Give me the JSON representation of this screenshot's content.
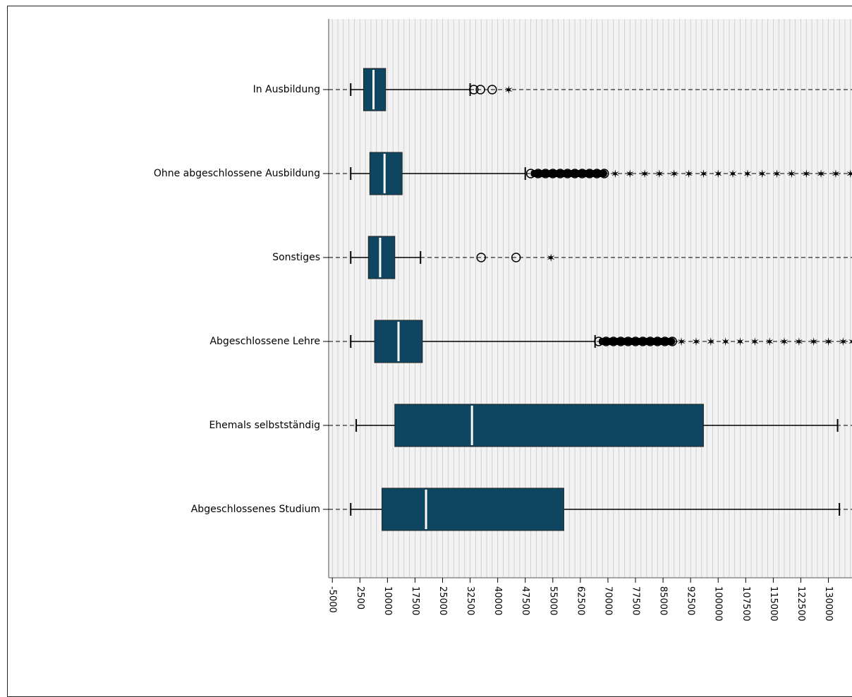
{
  "chart_data": {
    "type": "boxplot",
    "orientation": "horizontal",
    "title": "",
    "xlabel": "",
    "ylabel": "",
    "xlim": [
      -6000,
      137000
    ],
    "x_ticks": [
      -5000,
      2500,
      10000,
      17500,
      25000,
      32500,
      40000,
      47500,
      55000,
      62500,
      70000,
      77500,
      85000,
      92500,
      100000,
      107500,
      115000,
      122500,
      130000
    ],
    "x_tick_labels": [
      "-5000",
      "2500",
      "10000",
      "17500",
      "25000",
      "32500",
      "40000",
      "47500",
      "55000",
      "62500",
      "70000",
      "77500",
      "85000",
      "92500",
      "100000",
      "107500",
      "115000",
      "122500",
      "130000"
    ],
    "grid": true,
    "colors": {
      "box_fill": "#0e4560",
      "median": "#ffffff",
      "plot_bg": "#f2f2f2",
      "grid": "#c8c8c8",
      "whisker": "#000000"
    },
    "categories": [
      "In Ausbildung",
      "Ohne abgeschlossene Ausbildung",
      "Sonstiges",
      "Abgeschlossene Lehre",
      "Ehemals selbstständig",
      "Abgeschlossenes Studium"
    ],
    "boxes": [
      {
        "min": 0,
        "q1": 3500,
        "median": 6200,
        "q3": 9500,
        "max": 32500,
        "outliers": [
          33500,
          35300,
          38500
        ],
        "extremes": [
          43000
        ],
        "outliers_beyond_axis": false
      },
      {
        "min": 0,
        "q1": 5200,
        "median": 9200,
        "q3": 14000,
        "max": 47500,
        "outliers": [
          49000,
          51000,
          53000,
          55000,
          57000,
          59000,
          61000,
          63000,
          65000,
          67000,
          69000
        ],
        "extremes": [
          72000,
          76000,
          80000,
          84000,
          88000,
          92000,
          96000,
          100000,
          104000,
          108000,
          112000,
          116000,
          120000,
          124000,
          128000,
          132000,
          136000
        ],
        "outliers_beyond_axis": true
      },
      {
        "min": 0,
        "q1": 4800,
        "median": 8000,
        "q3": 12000,
        "max": 19000,
        "outliers": [
          35500,
          45000
        ],
        "extremes": [
          54500
        ],
        "outliers_beyond_axis": false
      },
      {
        "min": 0,
        "q1": 6500,
        "median": 13000,
        "q3": 19500,
        "max": 66500,
        "outliers": [
          67500,
          69500,
          71500,
          73500,
          75500,
          77500,
          79500,
          81500,
          83500,
          85500,
          87500
        ],
        "extremes": [
          90000,
          94000,
          98000,
          102000,
          106000,
          110000,
          114000,
          118000,
          122000,
          126000,
          130000,
          134000,
          136500
        ],
        "outliers_beyond_axis": true
      },
      {
        "min": 1500,
        "q1": 12000,
        "median": 33000,
        "q3": 96000,
        "max": 132500,
        "outliers": [],
        "extremes": [],
        "outliers_beyond_axis": false
      },
      {
        "min": 0,
        "q1": 8500,
        "median": 20500,
        "q3": 58000,
        "max": 133000,
        "outliers": [],
        "extremes": [],
        "outliers_beyond_axis": false
      }
    ]
  }
}
